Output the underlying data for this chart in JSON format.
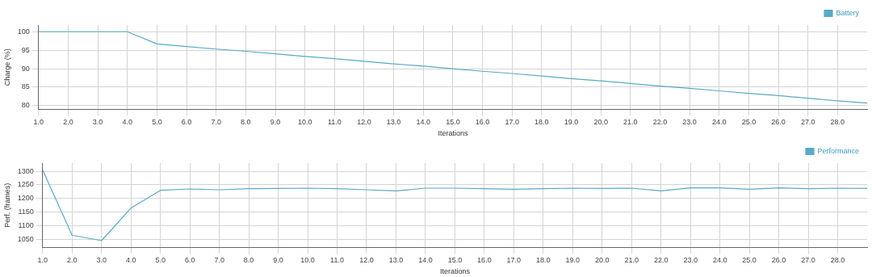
{
  "chart_data": [
    {
      "type": "line",
      "xlabel": "Iterations",
      "ylabel": "Charge (%)",
      "x": [
        1,
        2,
        3,
        4,
        5,
        6,
        7,
        8,
        9,
        10,
        11,
        12,
        13,
        14,
        15,
        16,
        17,
        18,
        19,
        20,
        21,
        22,
        23,
        24,
        25,
        26,
        27,
        28,
        29
      ],
      "series": [
        {
          "name": "Battery",
          "color": "#5aa9c6",
          "values": [
            100,
            100,
            100,
            100,
            96.7,
            96.0,
            95.3,
            94.7,
            94.0,
            93.3,
            92.7,
            92.0,
            91.3,
            90.7,
            90.0,
            89.3,
            88.7,
            88.0,
            87.3,
            86.7,
            86.0,
            85.3,
            84.7,
            84.0,
            83.3,
            82.7,
            82.0,
            81.3,
            80.7
          ]
        }
      ],
      "xlim": [
        1,
        29
      ],
      "xticks": [
        {
          "value": 1,
          "label": "1.0"
        },
        {
          "value": 2,
          "label": "2.0"
        },
        {
          "value": 3,
          "label": "3.0"
        },
        {
          "value": 4,
          "label": "4.0"
        },
        {
          "value": 5,
          "label": "5.0"
        },
        {
          "value": 6,
          "label": "6.0"
        },
        {
          "value": 7,
          "label": "7.0"
        },
        {
          "value": 8,
          "label": "8.0"
        },
        {
          "value": 9,
          "label": "9.0"
        },
        {
          "value": 10,
          "label": "10.0"
        },
        {
          "value": 11,
          "label": "11.0"
        },
        {
          "value": 12,
          "label": "12.0"
        },
        {
          "value": 13,
          "label": "13.0"
        },
        {
          "value": 14,
          "label": "14.0"
        },
        {
          "value": 15,
          "label": "15.0"
        },
        {
          "value": 16,
          "label": "16.0"
        },
        {
          "value": 17,
          "label": "17.0"
        },
        {
          "value": 18,
          "label": "18.0"
        },
        {
          "value": 19,
          "label": "19.0"
        },
        {
          "value": 20,
          "label": "20.0"
        },
        {
          "value": 21,
          "label": "21.0"
        },
        {
          "value": 22,
          "label": "22.0"
        },
        {
          "value": 23,
          "label": "23.0"
        },
        {
          "value": 24,
          "label": "24.0"
        },
        {
          "value": 25,
          "label": "25.0"
        },
        {
          "value": 26,
          "label": "26.0"
        },
        {
          "value": 27,
          "label": "27.0"
        },
        {
          "value": 28,
          "label": "28.0"
        }
      ],
      "ylim": [
        79,
        101.8
      ],
      "yticks": [
        80,
        85,
        90,
        95,
        100
      ],
      "grid": true,
      "legend": "top right",
      "marker": "none"
    },
    {
      "type": "line",
      "xlabel": "Iterations",
      "ylabel": "Perf. (frames)",
      "x": [
        1,
        2,
        3,
        4,
        5,
        6,
        7,
        8,
        9,
        10,
        11,
        12,
        13,
        14,
        15,
        16,
        17,
        18,
        19,
        20,
        21,
        22,
        23,
        24,
        25,
        26,
        27,
        28,
        29
      ],
      "series": [
        {
          "name": "Performance",
          "color": "#5aa9c6",
          "values": [
            1305,
            1065,
            1045,
            1165,
            1230,
            1235,
            1232,
            1236,
            1237,
            1238,
            1236,
            1232,
            1228,
            1238,
            1238,
            1236,
            1234,
            1236,
            1238,
            1237,
            1238,
            1228,
            1239,
            1239,
            1234,
            1239,
            1236,
            1238,
            1237
          ]
        }
      ],
      "xlim": [
        1,
        29
      ],
      "xticks": [
        {
          "value": 1,
          "label": "1.0"
        },
        {
          "value": 2,
          "label": "2.0"
        },
        {
          "value": 3,
          "label": "3.0"
        },
        {
          "value": 4,
          "label": "4.0"
        },
        {
          "value": 5,
          "label": "5.0"
        },
        {
          "value": 6,
          "label": "6.0"
        },
        {
          "value": 7,
          "label": "7.0"
        },
        {
          "value": 8,
          "label": "8.0"
        },
        {
          "value": 9,
          "label": "9.0"
        },
        {
          "value": 10,
          "label": "10.0"
        },
        {
          "value": 11,
          "label": "11.0"
        },
        {
          "value": 12,
          "label": "12.0"
        },
        {
          "value": 13,
          "label": "13.0"
        },
        {
          "value": 14,
          "label": "14.0"
        },
        {
          "value": 15,
          "label": "15.0"
        },
        {
          "value": 16,
          "label": "16.0"
        },
        {
          "value": 17,
          "label": "17.0"
        },
        {
          "value": 18,
          "label": "18.0"
        },
        {
          "value": 19,
          "label": "19.0"
        },
        {
          "value": 20,
          "label": "20.0"
        },
        {
          "value": 21,
          "label": "21.0"
        },
        {
          "value": 22,
          "label": "22.0"
        },
        {
          "value": 23,
          "label": "23.0"
        },
        {
          "value": 24,
          "label": "24.0"
        },
        {
          "value": 25,
          "label": "25.0"
        },
        {
          "value": 26,
          "label": "26.0"
        },
        {
          "value": 27,
          "label": "27.0"
        },
        {
          "value": 28,
          "label": "28.0"
        }
      ],
      "ylim": [
        1020,
        1330
      ],
      "yticks": [
        1050,
        1100,
        1150,
        1200,
        1250,
        1300
      ],
      "grid": true,
      "legend": "top right",
      "marker": "none"
    }
  ]
}
